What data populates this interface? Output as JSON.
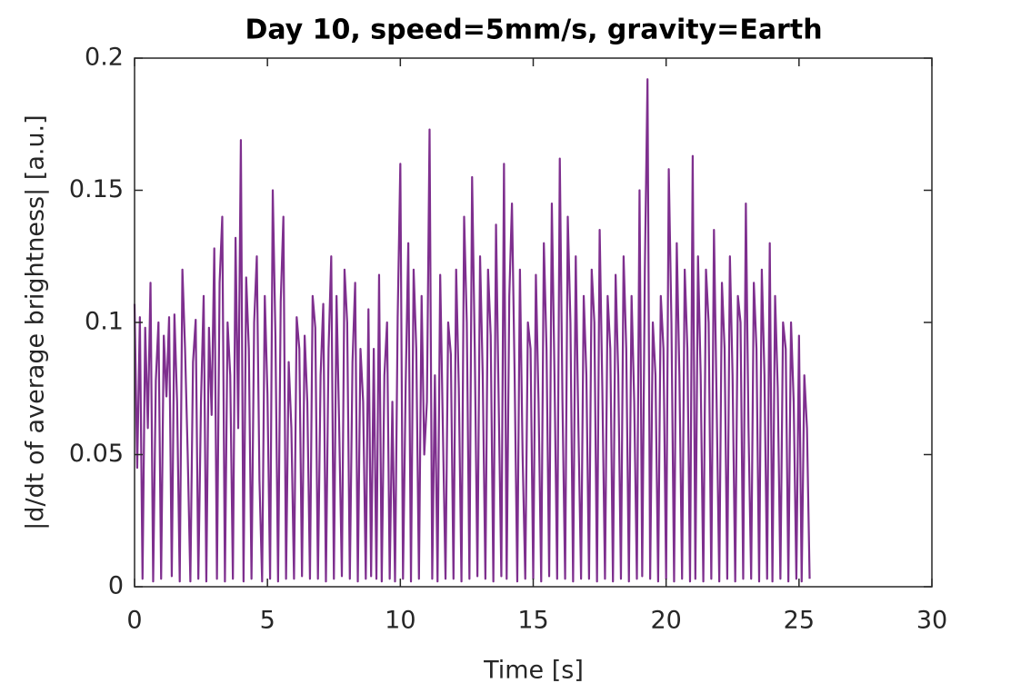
{
  "chart_data": {
    "type": "line",
    "title": "Day 10, speed=5mm/s, gravity=Earth",
    "x_label": "Time [s]",
    "y_label": "|d/dt of average brightness| [a.u.]",
    "x": [
      0,
      0.1,
      0.2,
      0.3,
      0.4,
      0.5,
      0.6,
      0.7,
      0.8,
      0.9,
      1,
      1.1,
      1.2,
      1.3,
      1.4,
      1.5,
      1.6,
      1.7,
      1.8,
      1.9,
      2,
      2.1,
      2.2,
      2.3,
      2.4,
      2.5,
      2.6,
      2.7,
      2.8,
      2.9,
      3,
      3.1,
      3.2,
      3.3,
      3.4,
      3.5,
      3.6,
      3.7,
      3.8,
      3.9,
      4,
      4.1,
      4.2,
      4.3,
      4.4,
      4.5,
      4.6,
      4.7,
      4.8,
      4.9,
      5,
      5.1,
      5.2,
      5.3,
      5.4,
      5.5,
      5.6,
      5.7,
      5.8,
      5.9,
      6,
      6.1,
      6.2,
      6.3,
      6.4,
      6.5,
      6.6,
      6.7,
      6.8,
      6.9,
      7,
      7.1,
      7.2,
      7.3,
      7.4,
      7.5,
      7.6,
      7.7,
      7.8,
      7.9,
      8,
      8.1,
      8.2,
      8.3,
      8.4,
      8.5,
      8.6,
      8.7,
      8.8,
      8.9,
      9,
      9.1,
      9.2,
      9.3,
      9.4,
      9.5,
      9.6,
      9.7,
      9.8,
      9.9,
      10,
      10.1,
      10.2,
      10.3,
      10.4,
      10.5,
      10.6,
      10.7,
      10.8,
      10.9,
      11,
      11.1,
      11.2,
      11.3,
      11.4,
      11.5,
      11.6,
      11.7,
      11.8,
      11.9,
      12,
      12.1,
      12.2,
      12.3,
      12.4,
      12.5,
      12.6,
      12.7,
      12.8,
      12.9,
      13,
      13.1,
      13.2,
      13.3,
      13.4,
      13.5,
      13.6,
      13.7,
      13.8,
      13.9,
      14,
      14.1,
      14.2,
      14.3,
      14.4,
      14.5,
      14.6,
      14.7,
      14.8,
      14.9,
      15,
      15.1,
      15.2,
      15.3,
      15.4,
      15.5,
      15.6,
      15.7,
      15.8,
      15.9,
      16,
      16.1,
      16.2,
      16.3,
      16.4,
      16.5,
      16.6,
      16.7,
      16.8,
      16.9,
      17,
      17.1,
      17.2,
      17.3,
      17.4,
      17.5,
      17.6,
      17.7,
      17.8,
      17.9,
      18,
      18.1,
      18.2,
      18.3,
      18.4,
      18.5,
      18.6,
      18.7,
      18.8,
      18.9,
      19,
      19.1,
      19.2,
      19.3,
      19.4,
      19.5,
      19.6,
      19.7,
      19.8,
      19.9,
      20,
      20.1,
      20.2,
      20.3,
      20.4,
      20.5,
      20.6,
      20.7,
      20.8,
      20.9,
      21,
      21.1,
      21.2,
      21.3,
      21.4,
      21.5,
      21.6,
      21.7,
      21.8,
      21.9,
      22,
      22.1,
      22.2,
      22.3,
      22.4,
      22.5,
      22.6,
      22.7,
      22.8,
      22.9,
      23,
      23.1,
      23.2,
      23.3,
      23.4,
      23.5,
      23.6,
      23.7,
      23.8,
      23.9,
      24,
      24.1,
      24.2,
      24.3,
      24.4,
      24.5,
      24.6,
      24.7,
      24.8,
      24.9,
      25,
      25.1,
      25.2,
      25.3,
      25.4
    ],
    "values": [
      0.107,
      0.045,
      0.102,
      0.003,
      0.098,
      0.06,
      0.115,
      0.002,
      0.078,
      0.1,
      0.003,
      0.095,
      0.072,
      0.102,
      0.004,
      0.103,
      0.07,
      0.002,
      0.12,
      0.09,
      0.05,
      0.002,
      0.085,
      0.101,
      0.003,
      0.07,
      0.11,
      0.002,
      0.098,
      0.065,
      0.128,
      0.003,
      0.115,
      0.14,
      0.002,
      0.1,
      0.08,
      0.003,
      0.132,
      0.06,
      0.169,
      0.002,
      0.117,
      0.09,
      0.003,
      0.1,
      0.125,
      0.04,
      0.002,
      0.11,
      0.073,
      0.003,
      0.15,
      0.095,
      0.002,
      0.108,
      0.14,
      0.003,
      0.085,
      0.06,
      0.003,
      0.102,
      0.09,
      0.004,
      0.095,
      0.07,
      0.003,
      0.11,
      0.098,
      0.003,
      0.08,
      0.107,
      0.002,
      0.09,
      0.125,
      0.003,
      0.11,
      0.06,
      0.004,
      0.12,
      0.1,
      0.003,
      0.085,
      0.115,
      0.002,
      0.09,
      0.07,
      0.003,
      0.105,
      0.004,
      0.09,
      0.003,
      0.118,
      0.002,
      0.08,
      0.1,
      0.003,
      0.07,
      0.002,
      0.102,
      0.16,
      0.003,
      0.076,
      0.13,
      0.002,
      0.12,
      0.09,
      0.003,
      0.11,
      0.05,
      0.07,
      0.173,
      0.003,
      0.08,
      0.002,
      0.118,
      0.06,
      0.003,
      0.1,
      0.088,
      0.003,
      0.12,
      0.075,
      0.002,
      0.14,
      0.1,
      0.003,
      0.155,
      0.09,
      0.004,
      0.125,
      0.08,
      0.003,
      0.12,
      0.095,
      0.002,
      0.137,
      0.07,
      0.004,
      0.16,
      0.003,
      0.11,
      0.145,
      0.08,
      0.002,
      0.12,
      0.05,
      0.003,
      0.1,
      0.09,
      0.003,
      0.118,
      0.07,
      0.002,
      0.13,
      0.09,
      0.004,
      0.145,
      0.08,
      0.003,
      0.162,
      0.07,
      0.003,
      0.14,
      0.1,
      0.002,
      0.125,
      0.06,
      0.003,
      0.11,
      0.08,
      0.003,
      0.12,
      0.1,
      0.002,
      0.135,
      0.075,
      0.003,
      0.11,
      0.09,
      0.002,
      0.118,
      0.08,
      0.003,
      0.125,
      0.09,
      0.002,
      0.11,
      0.07,
      0.003,
      0.15,
      0.004,
      0.12,
      0.192,
      0.003,
      0.1,
      0.08,
      0.002,
      0.11,
      0.09,
      0.003,
      0.158,
      0.1,
      0.002,
      0.13,
      0.08,
      0.003,
      0.12,
      0.09,
      0.002,
      0.163,
      0.003,
      0.125,
      0.08,
      0.002,
      0.12,
      0.1,
      0.003,
      0.135,
      0.07,
      0.002,
      0.115,
      0.09,
      0.003,
      0.125,
      0.08,
      0.002,
      0.11,
      0.1,
      0.003,
      0.145,
      0.06,
      0.003,
      0.115,
      0.09,
      0.002,
      0.12,
      0.08,
      0.003,
      0.13,
      0.002,
      0.11,
      0.075,
      0.003,
      0.1,
      0.09,
      0.002,
      0.1,
      0.07,
      0.003,
      0.095,
      0.002,
      0.08,
      0.06,
      0.003
    ],
    "color": "#7e2f8e",
    "xlim": [
      0,
      30
    ],
    "xticks": [
      0,
      5,
      10,
      15,
      20,
      25,
      30
    ],
    "ylim": [
      0,
      0.2
    ],
    "yticks": [
      0,
      0.05,
      0.1,
      0.15,
      0.2
    ]
  }
}
